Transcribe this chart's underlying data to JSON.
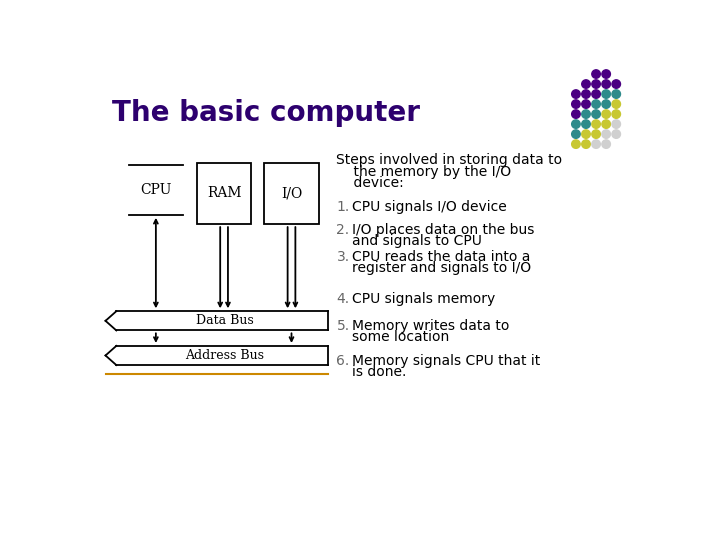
{
  "title": "The basic computer",
  "title_color": "#2d006e",
  "title_fontsize": 20,
  "bg_color": "#ffffff",
  "diagram": {
    "cpu_label": "CPU",
    "ram_label": "RAM",
    "io_label": "I/O",
    "data_bus_label": "Data Bus",
    "address_bus_label": "Address Bus"
  },
  "dot_grid": [
    [
      null,
      null,
      "#4b0082",
      "#4b0082"
    ],
    [
      null,
      "#4b0082",
      "#4b0082",
      "#4b0082",
      "#4b0082"
    ],
    [
      "#4b0082",
      "#4b0082",
      "#4b0082",
      "#2e8b8b",
      "#2e8b8b"
    ],
    [
      "#4b0082",
      "#4b0082",
      "#2e8b8b",
      "#2e8b8b",
      "#c8c832"
    ],
    [
      "#4b0082",
      "#2e8b8b",
      "#2e8b8b",
      "#c8c832",
      "#c8c832"
    ],
    [
      "#2e8b8b",
      "#2e8b8b",
      "#c8c832",
      "#c8c832",
      "#d0d0d0"
    ],
    [
      "#2e8b8b",
      "#c8c832",
      "#c8c832",
      "#d0d0d0",
      "#d0d0d0"
    ],
    [
      "#c8c832",
      "#c8c832",
      "#d0d0d0",
      "#d0d0d0",
      null
    ]
  ],
  "steps_header_line1": "Steps involved in storing data to",
  "steps_header_line2": "    the memory by the I/O",
  "steps_header_line3": "    device:",
  "step_items": [
    [
      "CPU signals I/O device",
      null
    ],
    [
      "I/O places data on the bus",
      "and signals to CPU"
    ],
    [
      "CPU reads the data into a",
      "register and signals to I/O"
    ],
    [
      "CPU signals memory",
      null
    ],
    [
      "Memory writes data to",
      "some location"
    ],
    [
      "Memory signals CPU that it",
      "is done."
    ]
  ]
}
